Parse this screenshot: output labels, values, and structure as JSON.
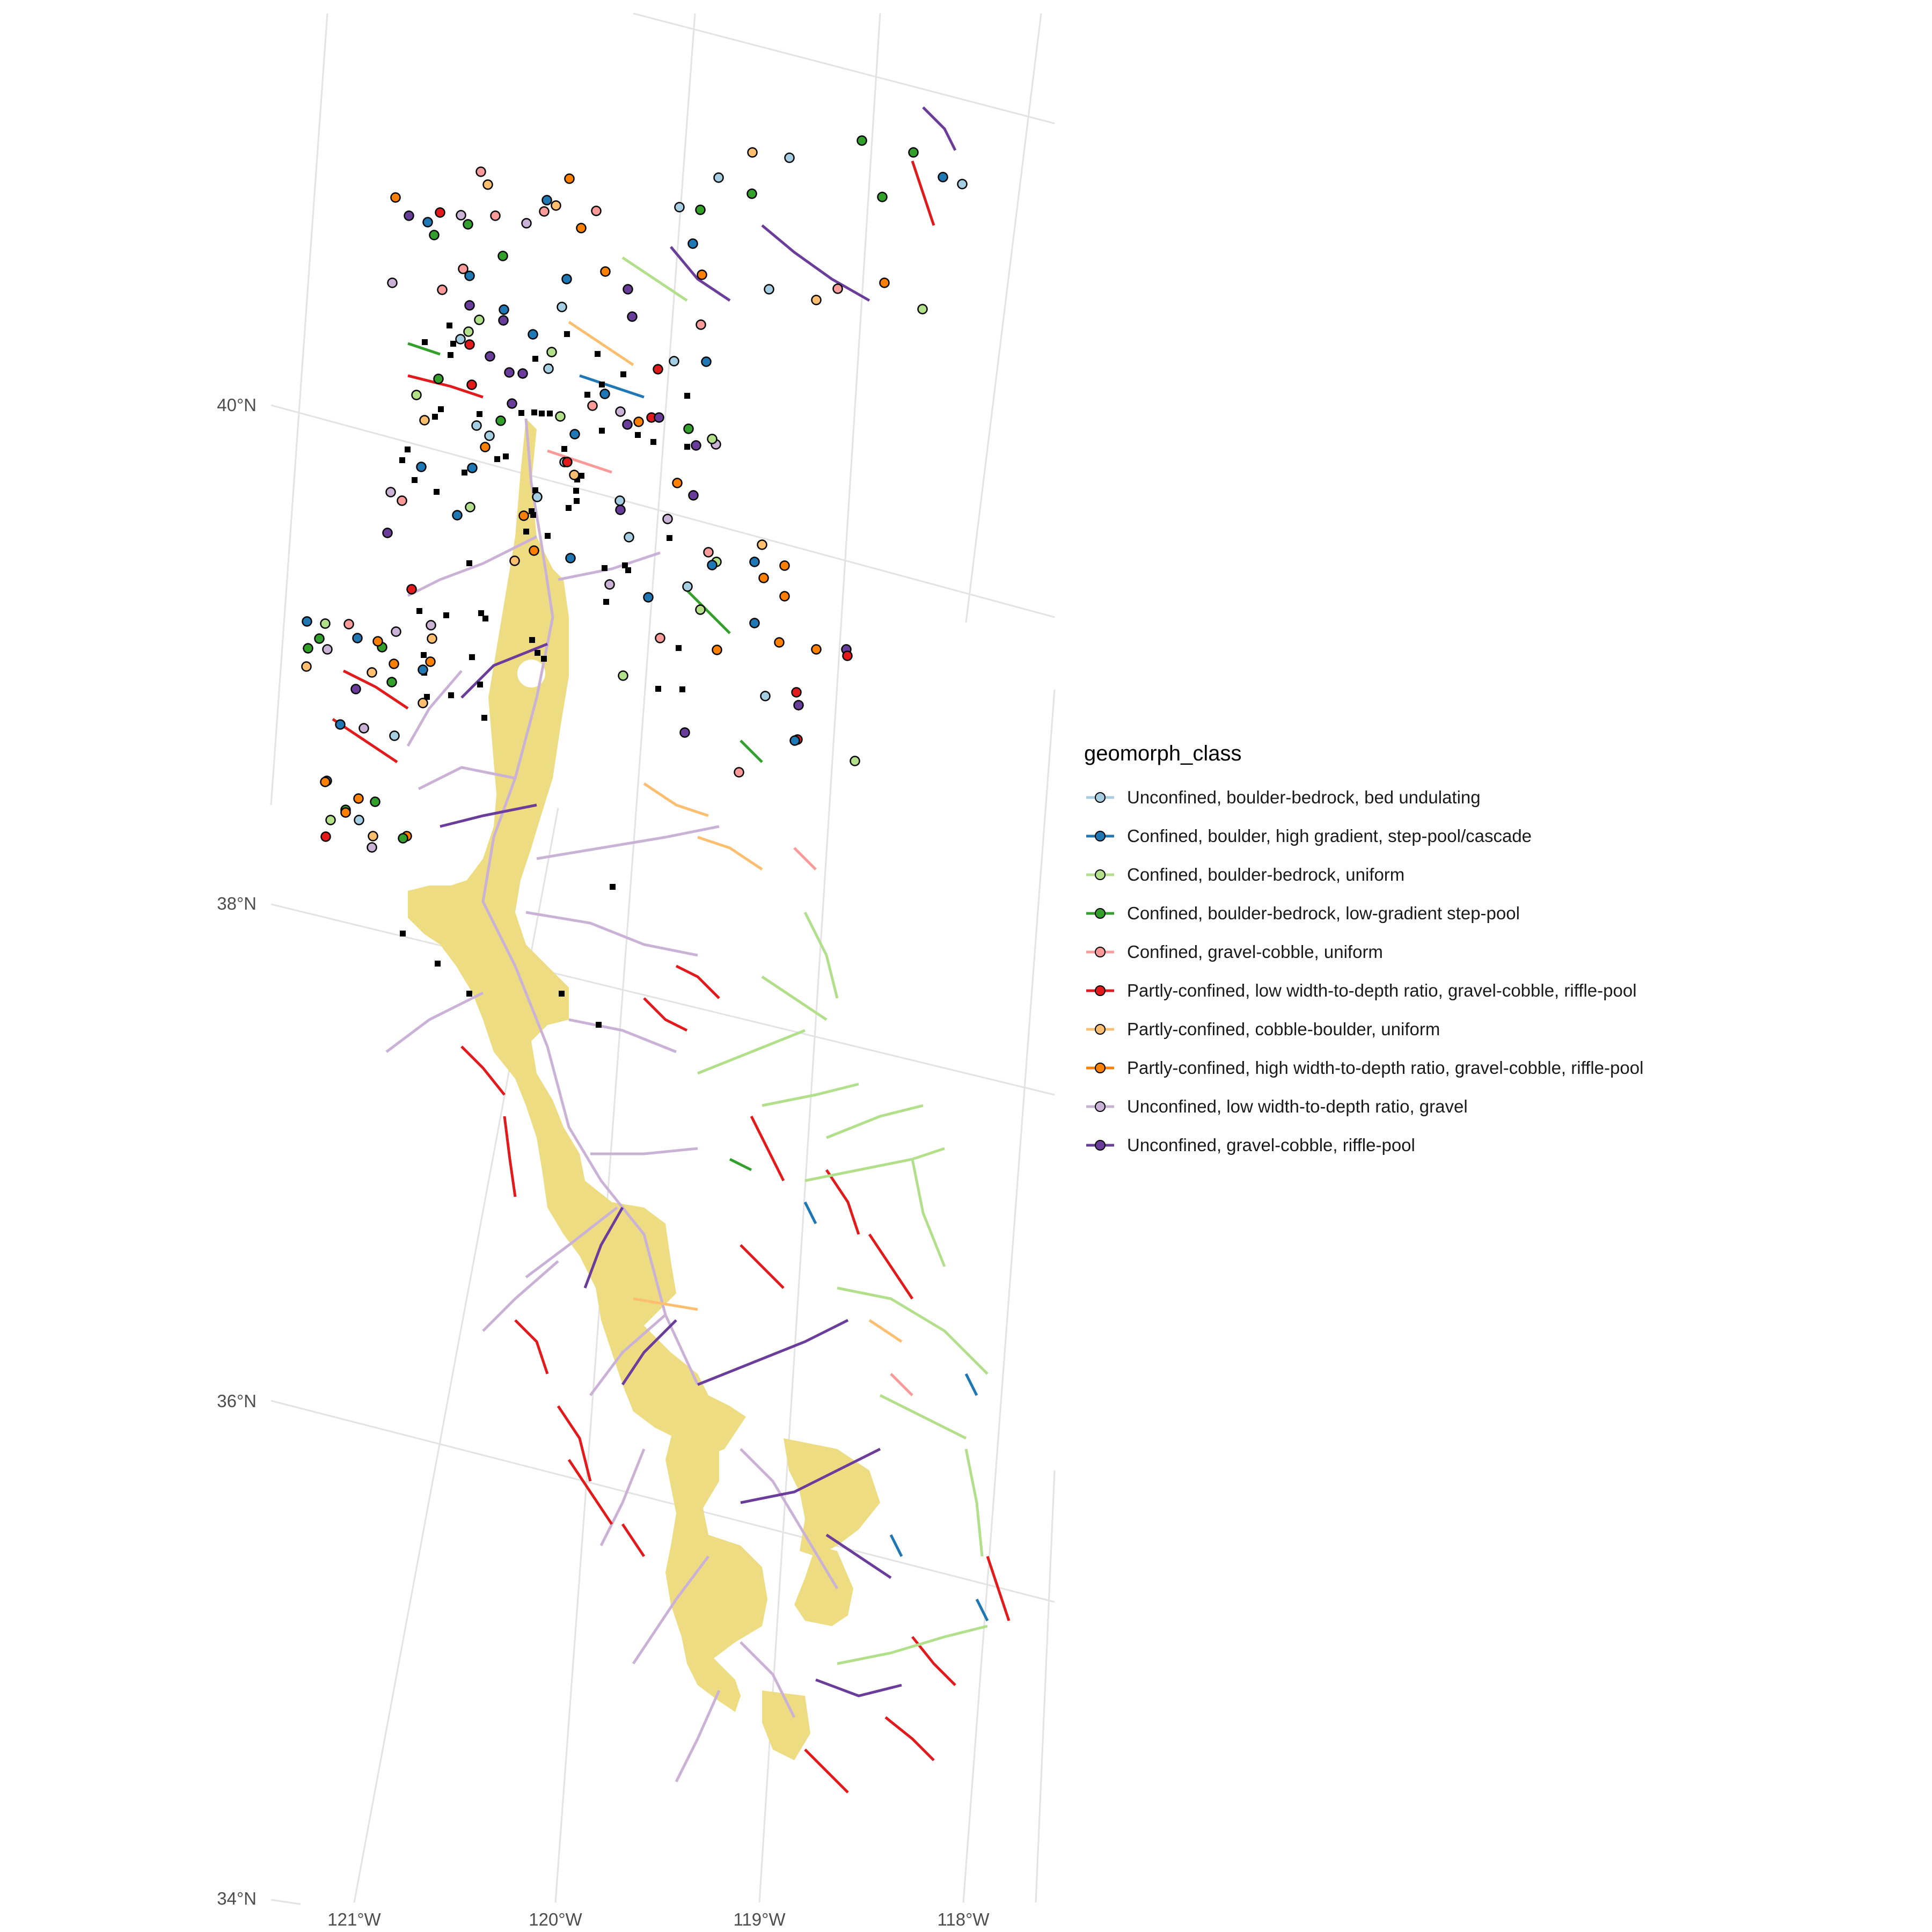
{
  "map": {
    "latitude_labels": [
      "40°N",
      "38°N",
      "36°N",
      "34°N"
    ],
    "longitude_labels": [
      "121°W",
      "120°W",
      "119°W",
      "118°W"
    ],
    "grid": true,
    "basin_fill_color": "#EEDC82",
    "sample_site_color": "#000000"
  },
  "legend": {
    "title": "geomorph_class",
    "placement": "right",
    "items": [
      {
        "label": "Unconfined, boulder-bedrock, bed undulating",
        "color": "#A6CEE3"
      },
      {
        "label": "Confined, boulder, high gradient, step-pool/cascade",
        "color": "#1F78B4"
      },
      {
        "label": "Confined, boulder-bedrock, uniform",
        "color": "#B2DF8A"
      },
      {
        "label": "Confined, boulder-bedrock, low-gradient step-pool",
        "color": "#33A02C"
      },
      {
        "label": "Confined, gravel-cobble, uniform",
        "color": "#FB9A99"
      },
      {
        "label": "Partly-confined, low width-to-depth ratio, gravel-cobble, riffle-pool",
        "color": "#E31A1C"
      },
      {
        "label": "Partly-confined, cobble-boulder, uniform",
        "color": "#FDBF6F"
      },
      {
        "label": "Partly-confined, high width-to-depth ratio, gravel-cobble, riffle-pool",
        "color": "#FF7F00"
      },
      {
        "label": "Unconfined, low width-to-depth ratio, gravel",
        "color": "#CAB2D6"
      },
      {
        "label": "Unconfined, gravel-cobble, riffle-pool",
        "color": "#6A3D9A"
      }
    ]
  }
}
